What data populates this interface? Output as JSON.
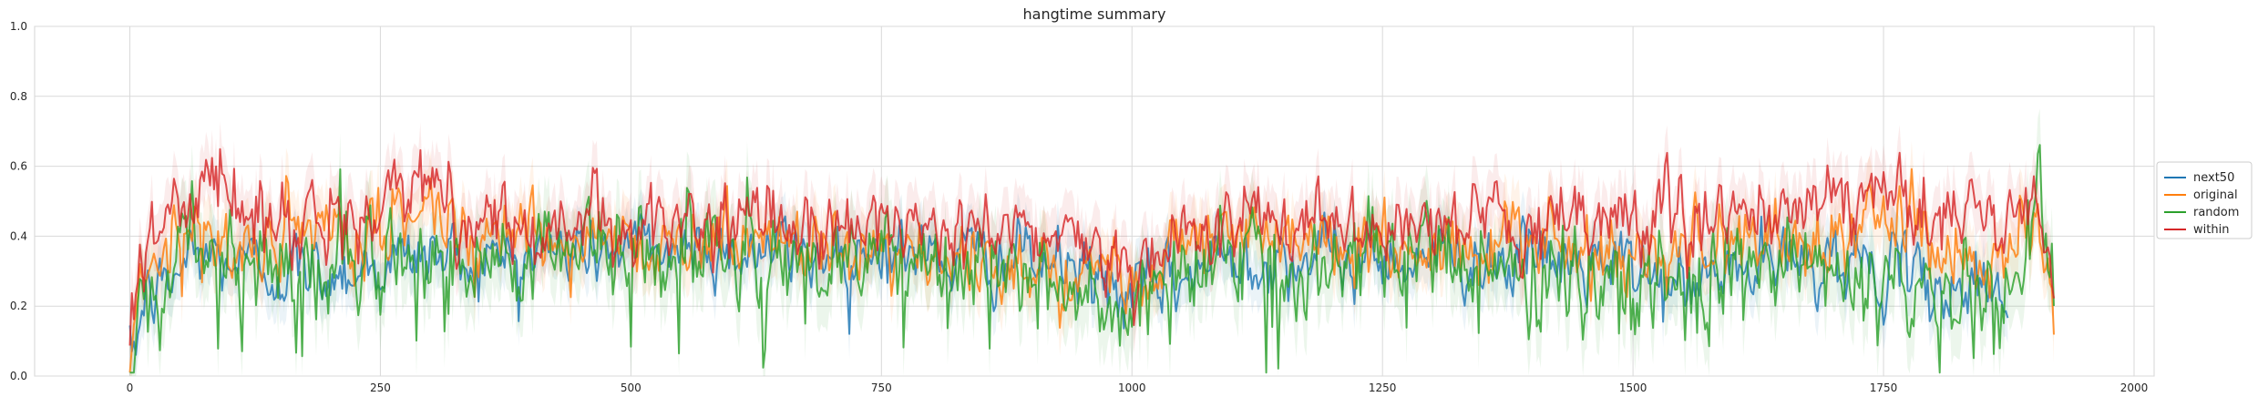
{
  "chart_data": {
    "type": "line",
    "title": "hangtime summary",
    "xlabel": "",
    "ylabel": "",
    "xlim": [
      -95,
      2020
    ],
    "ylim": [
      0.0,
      1.0
    ],
    "x_ticks": [
      "0",
      "250",
      "500",
      "750",
      "1000",
      "1250",
      "1500",
      "1750",
      "2000"
    ],
    "y_ticks": [
      "0.0",
      "0.2",
      "0.4",
      "0.6",
      "0.8",
      "1.0"
    ],
    "grid": true,
    "legend_position": "right-center",
    "x_length": 1920,
    "series": [
      {
        "name": "next50",
        "color": "#1f77b4",
        "end_x": 1875,
        "anchors": [
          [
            0,
            0.02
          ],
          [
            15,
            0.22
          ],
          [
            40,
            0.26
          ],
          [
            60,
            0.35
          ],
          [
            100,
            0.33
          ],
          [
            150,
            0.3
          ],
          [
            200,
            0.3
          ],
          [
            250,
            0.32
          ],
          [
            300,
            0.35
          ],
          [
            350,
            0.33
          ],
          [
            400,
            0.35
          ],
          [
            500,
            0.37
          ],
          [
            600,
            0.36
          ],
          [
            700,
            0.35
          ],
          [
            750,
            0.37
          ],
          [
            800,
            0.34
          ],
          [
            900,
            0.33
          ],
          [
            950,
            0.3
          ],
          [
            1000,
            0.22
          ],
          [
            1050,
            0.28
          ],
          [
            1100,
            0.35
          ],
          [
            1200,
            0.33
          ],
          [
            1300,
            0.35
          ],
          [
            1400,
            0.33
          ],
          [
            1500,
            0.3
          ],
          [
            1550,
            0.25
          ],
          [
            1600,
            0.3
          ],
          [
            1700,
            0.34
          ],
          [
            1750,
            0.3
          ],
          [
            1800,
            0.25
          ],
          [
            1850,
            0.26
          ],
          [
            1875,
            0.24
          ]
        ]
      },
      {
        "name": "original",
        "color": "#ff7f0e",
        "end_x": 1920,
        "anchors": [
          [
            0,
            0.03
          ],
          [
            10,
            0.32
          ],
          [
            40,
            0.38
          ],
          [
            80,
            0.42
          ],
          [
            100,
            0.35
          ],
          [
            150,
            0.38
          ],
          [
            250,
            0.4
          ],
          [
            300,
            0.5
          ],
          [
            330,
            0.42
          ],
          [
            400,
            0.42
          ],
          [
            500,
            0.38
          ],
          [
            600,
            0.38
          ],
          [
            700,
            0.4
          ],
          [
            750,
            0.38
          ],
          [
            800,
            0.32
          ],
          [
            850,
            0.28
          ],
          [
            900,
            0.34
          ],
          [
            950,
            0.3
          ],
          [
            1000,
            0.3
          ],
          [
            1050,
            0.4
          ],
          [
            1100,
            0.4
          ],
          [
            1200,
            0.37
          ],
          [
            1300,
            0.36
          ],
          [
            1400,
            0.37
          ],
          [
            1500,
            0.37
          ],
          [
            1600,
            0.38
          ],
          [
            1700,
            0.4
          ],
          [
            1750,
            0.45
          ],
          [
            1800,
            0.38
          ],
          [
            1850,
            0.35
          ],
          [
            1900,
            0.45
          ],
          [
            1920,
            0.12
          ]
        ]
      },
      {
        "name": "random",
        "color": "#2ca02c",
        "end_x": 1920,
        "anchors": [
          [
            0,
            0.02
          ],
          [
            15,
            0.25
          ],
          [
            40,
            0.28
          ],
          [
            60,
            0.4
          ],
          [
            100,
            0.32
          ],
          [
            150,
            0.3
          ],
          [
            200,
            0.28
          ],
          [
            250,
            0.32
          ],
          [
            300,
            0.35
          ],
          [
            350,
            0.32
          ],
          [
            400,
            0.34
          ],
          [
            500,
            0.36
          ],
          [
            600,
            0.33
          ],
          [
            700,
            0.34
          ],
          [
            750,
            0.36
          ],
          [
            800,
            0.32
          ],
          [
            900,
            0.3
          ],
          [
            950,
            0.26
          ],
          [
            1000,
            0.18
          ],
          [
            1050,
            0.3
          ],
          [
            1100,
            0.34
          ],
          [
            1200,
            0.3
          ],
          [
            1300,
            0.33
          ],
          [
            1400,
            0.3
          ],
          [
            1500,
            0.28
          ],
          [
            1550,
            0.22
          ],
          [
            1600,
            0.28
          ],
          [
            1700,
            0.32
          ],
          [
            1750,
            0.28
          ],
          [
            1800,
            0.22
          ],
          [
            1870,
            0.2
          ],
          [
            1890,
            0.4
          ],
          [
            1905,
            0.6
          ],
          [
            1920,
            0.2
          ]
        ]
      },
      {
        "name": "within",
        "color": "#d62728",
        "end_x": 1920,
        "anchors": [
          [
            0,
            0.03
          ],
          [
            8,
            0.38
          ],
          [
            40,
            0.45
          ],
          [
            90,
            0.58
          ],
          [
            110,
            0.47
          ],
          [
            150,
            0.45
          ],
          [
            200,
            0.44
          ],
          [
            250,
            0.46
          ],
          [
            300,
            0.58
          ],
          [
            330,
            0.46
          ],
          [
            400,
            0.43
          ],
          [
            500,
            0.43
          ],
          [
            600,
            0.43
          ],
          [
            700,
            0.44
          ],
          [
            750,
            0.44
          ],
          [
            800,
            0.42
          ],
          [
            900,
            0.4
          ],
          [
            950,
            0.4
          ],
          [
            1000,
            0.33
          ],
          [
            1050,
            0.42
          ],
          [
            1100,
            0.43
          ],
          [
            1200,
            0.42
          ],
          [
            1300,
            0.42
          ],
          [
            1400,
            0.44
          ],
          [
            1450,
            0.46
          ],
          [
            1500,
            0.44
          ],
          [
            1600,
            0.46
          ],
          [
            1700,
            0.46
          ],
          [
            1750,
            0.52
          ],
          [
            1800,
            0.48
          ],
          [
            1850,
            0.44
          ],
          [
            1900,
            0.52
          ],
          [
            1920,
            0.24
          ]
        ]
      }
    ]
  }
}
